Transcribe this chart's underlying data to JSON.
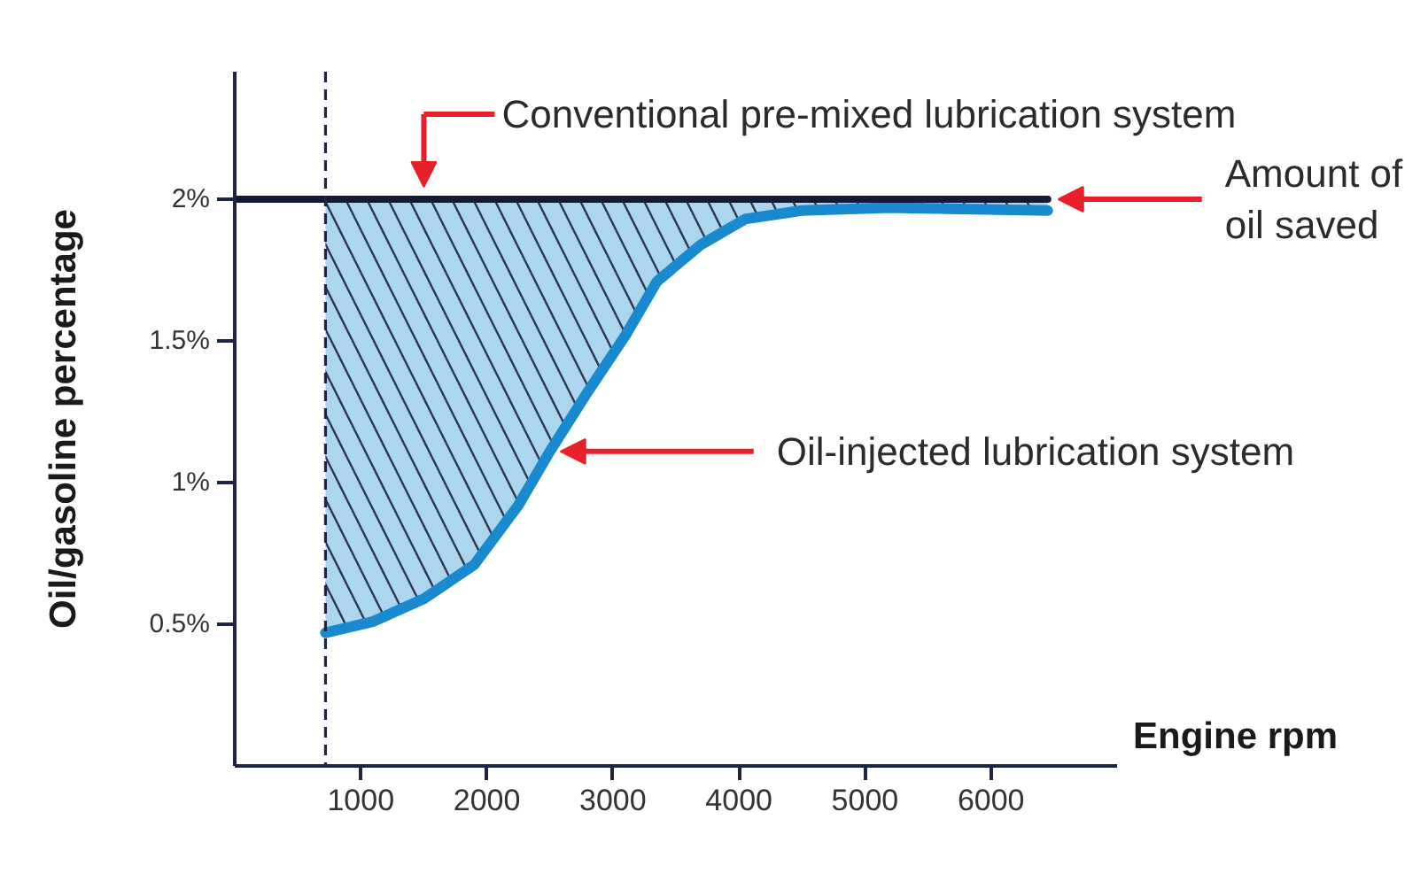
{
  "chart_data": {
    "type": "line",
    "xlabel": "Engine rpm",
    "ylabel": "Oil/gasoline percentage",
    "xlim": [
      0,
      7000
    ],
    "ylim": [
      0,
      2.45
    ],
    "xticks": [
      1000,
      2000,
      3000,
      4000,
      5000,
      6000
    ],
    "yticks": [
      {
        "value": 0.5,
        "label": "0.5%"
      },
      {
        "value": 1,
        "label": "1%"
      },
      {
        "value": 1.5,
        "label": "1.5%"
      },
      {
        "value": 2,
        "label": "2%"
      }
    ],
    "grid": false,
    "series": [
      {
        "color": "#1a8ad0",
        "x": [
          720,
          1100,
          1500,
          1900,
          2250,
          2500,
          2800,
          3100,
          3350,
          3700,
          4050,
          4500,
          5200,
          6450
        ],
        "values": [
          0.47,
          0.51,
          0.59,
          0.71,
          0.92,
          1.11,
          1.32,
          1.52,
          1.71,
          1.84,
          1.93,
          1.96,
          1.97,
          1.96
        ],
        "lower": [
          0.47,
          0.51,
          0.59,
          0.71,
          0.92,
          1.11,
          1.32,
          1.52,
          1.71,
          1.84,
          1.93,
          1.96,
          1.97,
          1.96
        ],
        "upper": [
          2,
          2,
          2,
          2,
          2,
          2,
          2,
          2,
          2,
          2,
          2,
          2,
          2,
          2
        ]
      },
      {
        "color": "#121a36",
        "x": [
          0,
          6450
        ],
        "values": [
          2,
          2
        ]
      }
    ],
    "ref_lines": [
      {
        "axis": "x",
        "value": 720,
        "color": "#1e2540",
        "line_style": "dashed"
      }
    ],
    "annotations": [
      {
        "text": "Conventional pre-mixed lubrication system",
        "x": 1500,
        "y": 2
      },
      {
        "text": "Amount of\noil saved",
        "x": 6450,
        "y": 2
      },
      {
        "text": "Oil-injected lubrication system",
        "x": 2500,
        "y": 1.11
      }
    ]
  }
}
